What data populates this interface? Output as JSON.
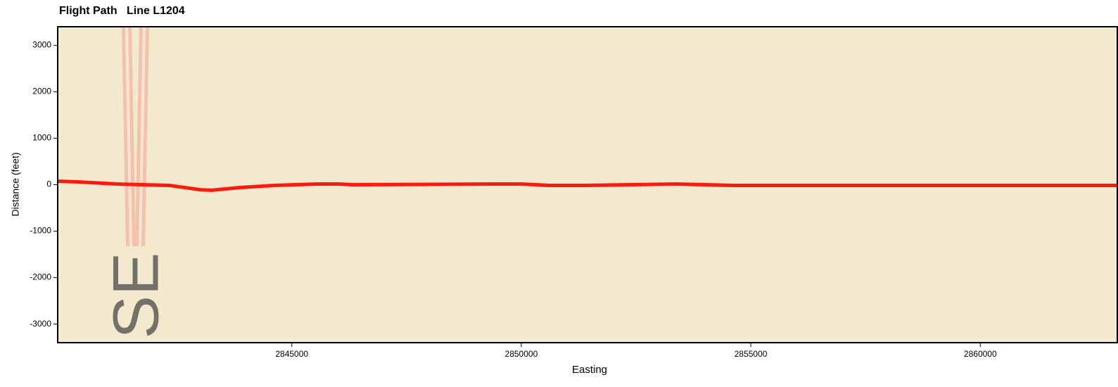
{
  "chart_data": {
    "type": "line",
    "title": "Flight Path   Line L1204",
    "x_label": "Easting",
    "y_label": "Distance (feet)",
    "annotation": "SE",
    "x": [
      2839900,
      2840340,
      2841180,
      2842330,
      2843020,
      2843250,
      2843870,
      2844630,
      2845550,
      2846010,
      2846320,
      2849390,
      2850000,
      2850610,
      2851380,
      2853370,
      2854600,
      2858590,
      2860120,
      2863000
    ],
    "values": [
      75,
      60,
      15,
      -15,
      -110,
      -120,
      -60,
      -15,
      15,
      15,
      0,
      15,
      15,
      -15,
      -15,
      15,
      -15,
      -15,
      -15,
      -15
    ],
    "color": "#ff1a10",
    "xlim": [
      2839900,
      2863000
    ],
    "ylim": [
      -3400,
      3400
    ],
    "xticks": [
      2845000,
      2850000,
      2855000,
      2860000
    ],
    "yticks": [
      -3000,
      -2000,
      -1000,
      0,
      1000,
      2000,
      3000
    ],
    "grid": false
  }
}
